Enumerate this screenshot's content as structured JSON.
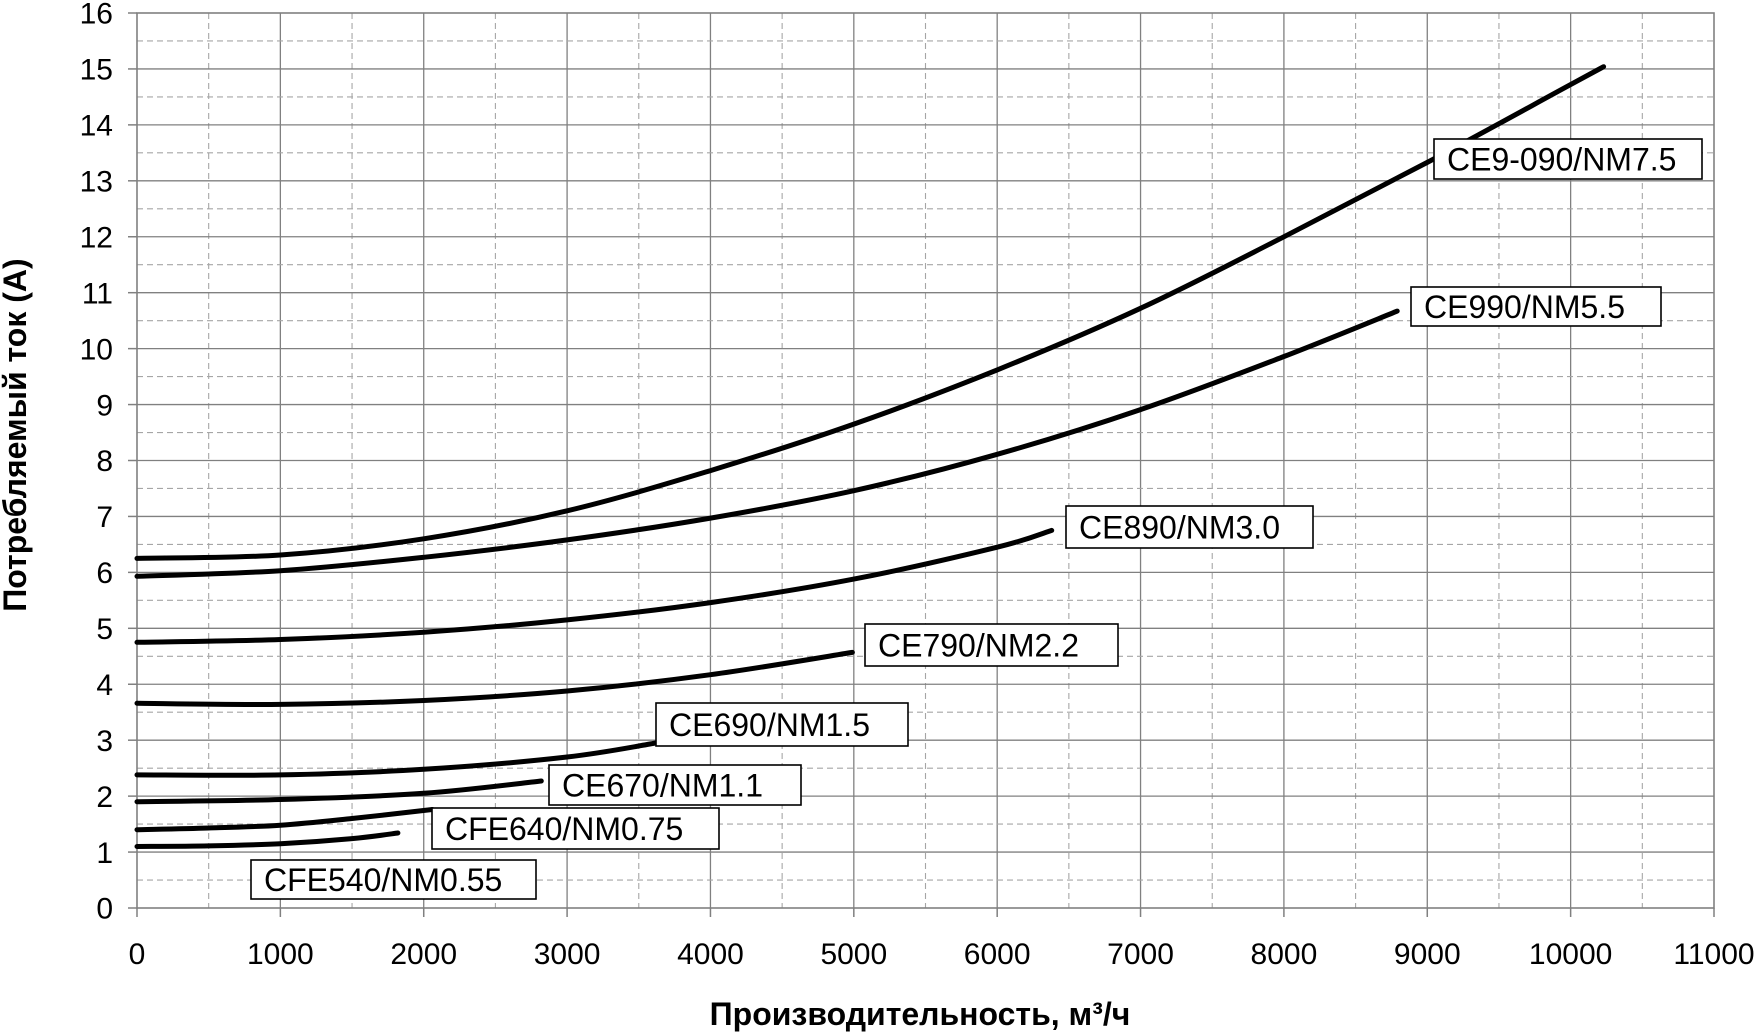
{
  "chart_data": {
    "type": "line",
    "title": "",
    "xlabel": "Производительность, м³/ч",
    "ylabel": "Потребляемый ток (A)",
    "xlim": [
      0,
      11000
    ],
    "ylim": [
      0,
      16
    ],
    "x_ticks": [
      0,
      1000,
      2000,
      3000,
      4000,
      5000,
      6000,
      7000,
      8000,
      9000,
      10000,
      11000
    ],
    "y_ticks": [
      0,
      1,
      2,
      3,
      4,
      5,
      6,
      7,
      8,
      9,
      10,
      11,
      12,
      13,
      14,
      15,
      16
    ],
    "minor_grid_step": {
      "x": 500,
      "y": 0.5
    },
    "grid": true,
    "series": [
      {
        "name": "CE9-090/NM7.5",
        "x": [
          0,
          1000,
          2000,
          3000,
          4000,
          5000,
          6000,
          7000,
          8000,
          9000,
          10000,
          10230
        ],
        "y": [
          6.25,
          6.31,
          6.6,
          7.1,
          7.82,
          8.65,
          9.62,
          10.72,
          12.0,
          13.33,
          14.72,
          15.04
        ]
      },
      {
        "name": "CE990/NM5.5",
        "x": [
          0,
          1000,
          2000,
          3000,
          4000,
          5000,
          6000,
          7000,
          8000,
          8790
        ],
        "y": [
          5.93,
          6.03,
          6.27,
          6.58,
          6.97,
          7.46,
          8.11,
          8.91,
          9.86,
          10.67
        ]
      },
      {
        "name": "CE890/NM3.0",
        "x": [
          0,
          1000,
          2000,
          3000,
          4000,
          5000,
          6000,
          6380
        ],
        "y": [
          4.75,
          4.8,
          4.93,
          5.15,
          5.46,
          5.88,
          6.45,
          6.75
        ]
      },
      {
        "name": "CE790/NM2.2",
        "x": [
          0,
          1000,
          2000,
          3000,
          4000,
          4990
        ],
        "y": [
          3.66,
          3.64,
          3.71,
          3.88,
          4.17,
          4.57
        ]
      },
      {
        "name": "CE690/NM1.5",
        "x": [
          0,
          1000,
          2000,
          3000,
          3620
        ],
        "y": [
          2.38,
          2.38,
          2.48,
          2.7,
          2.95
        ]
      },
      {
        "name": "CE670/NM1.1",
        "x": [
          0,
          1000,
          2000,
          2820
        ],
        "y": [
          1.9,
          1.94,
          2.05,
          2.27
        ]
      },
      {
        "name": "CFE640/NM0.75",
        "x": [
          0,
          500,
          1000,
          1500,
          2060
        ],
        "y": [
          1.4,
          1.43,
          1.48,
          1.6,
          1.76
        ]
      },
      {
        "name": "CFE540/NM0.55",
        "x": [
          0,
          500,
          1000,
          1500,
          1820
        ],
        "y": [
          1.1,
          1.11,
          1.15,
          1.24,
          1.34
        ]
      }
    ]
  },
  "colors": {
    "background": "#ffffff",
    "line": "#000000",
    "grid_major": "#808080",
    "grid_minor": "#a6a6a6",
    "plot_border": "#808080",
    "label_box_border": "#000000",
    "label_box_fill": "#ffffff"
  }
}
